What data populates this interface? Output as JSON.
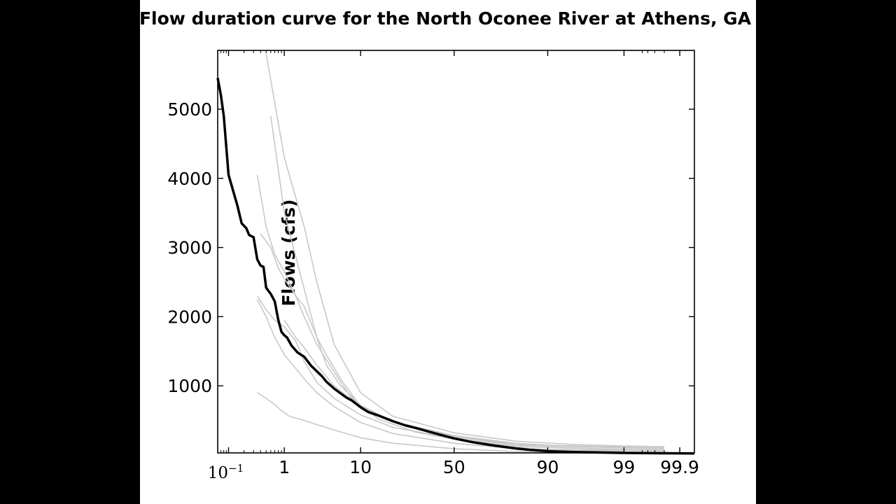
{
  "chart_data": {
    "type": "line",
    "title": "Flow duration curve for the North Oconee River at Athens, GA",
    "ylabel": "Flows (cfs)",
    "xlabel": "",
    "x_scale": "normal-probability",
    "xlim": [
      0.06,
      99.95
    ],
    "ylim": [
      30,
      5850
    ],
    "grid": false,
    "legend": "none",
    "colors": {
      "main": "#000000",
      "background_series": "#c8c8c8",
      "axes": "#000000"
    },
    "x_ticks": [
      {
        "value": 0.1,
        "label": "10",
        "sup": "−1",
        "style": "serif"
      },
      {
        "value": 1,
        "label": "1"
      },
      {
        "value": 10,
        "label": "10"
      },
      {
        "value": 50,
        "label": "50"
      },
      {
        "value": 90,
        "label": "90"
      },
      {
        "value": 99,
        "label": "99"
      },
      {
        "value": 99.9,
        "label": "99.9"
      }
    ],
    "y_ticks": [
      {
        "value": 1000,
        "label": "1000"
      },
      {
        "value": 2000,
        "label": "2000"
      },
      {
        "value": 3000,
        "label": "3000"
      },
      {
        "value": 4000,
        "label": "4000"
      },
      {
        "value": 5000,
        "label": "5000"
      }
    ],
    "main_series": {
      "x": [
        0.06,
        0.07,
        0.08,
        0.1,
        0.12,
        0.15,
        0.18,
        0.22,
        0.25,
        0.3,
        0.35,
        0.4,
        0.45,
        0.5,
        0.55,
        0.6,
        0.7,
        0.8,
        0.9,
        1.0,
        1.1,
        1.3,
        1.6,
        2,
        2.5,
        3,
        3.5,
        4,
        5,
        6,
        7,
        8,
        10,
        12,
        15,
        20,
        25,
        30,
        40,
        50,
        60,
        70,
        80,
        85,
        90,
        95,
        98,
        99,
        99.5,
        99.8,
        99.95
      ],
      "y": [
        5450,
        5200,
        4900,
        4050,
        3850,
        3600,
        3350,
        3280,
        3180,
        3150,
        2830,
        2740,
        2720,
        2420,
        2370,
        2330,
        2220,
        1950,
        1780,
        1730,
        1700,
        1580,
        1480,
        1420,
        1290,
        1210,
        1140,
        1060,
        960,
        890,
        830,
        790,
        690,
        620,
        570,
        490,
        430,
        390,
        310,
        240,
        185,
        140,
        95,
        75,
        55,
        42,
        35,
        30,
        28,
        25,
        22
      ]
    },
    "background_series": [
      {
        "x": [
          0.5,
          1,
          2,
          3,
          5,
          10,
          20,
          50,
          80,
          95,
          99,
          99.8
        ],
        "y": [
          5800,
          4300,
          3300,
          2500,
          1600,
          900,
          560,
          320,
          200,
          150,
          130,
          120
        ]
      },
      {
        "x": [
          0.6,
          1,
          2,
          3,
          4,
          6,
          10,
          20,
          50,
          80,
          95,
          99.8
        ],
        "y": [
          4900,
          3500,
          2400,
          1700,
          1450,
          1100,
          700,
          480,
          280,
          170,
          120,
          100
        ]
      },
      {
        "x": [
          0.35,
          0.5,
          0.7,
          1,
          1.5,
          2,
          3,
          5,
          8,
          15,
          30,
          60,
          85,
          99
        ],
        "y": [
          4050,
          3300,
          2900,
          2650,
          2300,
          2000,
          1600,
          1200,
          820,
          520,
          330,
          180,
          90,
          50
        ]
      },
      {
        "x": [
          0.35,
          0.5,
          0.7,
          1,
          1.5,
          2,
          3,
          5,
          10,
          20,
          50,
          80,
          99.8
        ],
        "y": [
          2300,
          2100,
          1950,
          1850,
          1650,
          1350,
          1050,
          820,
          580,
          400,
          240,
          120,
          70
        ]
      },
      {
        "x": [
          0.35,
          0.5,
          0.7,
          1,
          1.5,
          2,
          3,
          5,
          10,
          20,
          50,
          80,
          99.8
        ],
        "y": [
          2250,
          2000,
          1700,
          1450,
          1250,
          1100,
          900,
          700,
          470,
          310,
          170,
          90,
          60
        ]
      },
      {
        "x": [
          0.35,
          0.5,
          0.7,
          0.9,
          1.2,
          2,
          3,
          5,
          10,
          20,
          50,
          80,
          99.8
        ],
        "y": [
          900,
          820,
          730,
          640,
          560,
          500,
          440,
          360,
          250,
          170,
          90,
          50,
          40
        ]
      },
      {
        "x": [
          1,
          1.5,
          2,
          3,
          5,
          10,
          20,
          50,
          80,
          99.8
        ],
        "y": [
          1950,
          1700,
          1550,
          1300,
          1000,
          700,
          480,
          280,
          150,
          100
        ]
      },
      {
        "x": [
          0.4,
          0.6,
          0.8,
          1,
          1.5,
          2,
          3,
          4,
          6,
          10,
          20,
          50,
          80,
          99.8
        ],
        "y": [
          3200,
          3000,
          2700,
          2550,
          2300,
          2150,
          1700,
          1300,
          1000,
          720,
          480,
          260,
          140,
          90
        ]
      }
    ]
  }
}
